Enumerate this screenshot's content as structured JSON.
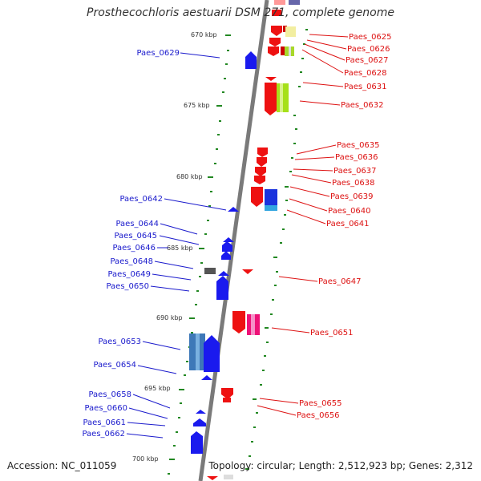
{
  "title": "Prosthecochloris aestuarii DSM 271, complete genome",
  "accession": "Accession: NC_011059",
  "summary": "Topology: circular; Length: 2,512,923 bp; Genes: 2,312",
  "colors": {
    "forward_label": "#1a1acc",
    "reverse_label": "#dd1111",
    "backbone": "#888888",
    "tick": "#228822"
  },
  "scale_labels": [
    "670 kbp",
    "675 kbp",
    "680 kbp",
    "685 kbp",
    "690 kbp",
    "695 kbp",
    "700 kbp"
  ],
  "forward_genes": [
    "Paes_0629",
    "Paes_0642",
    "Paes_0644",
    "Paes_0645",
    "Paes_0646",
    "Paes_0648",
    "Paes_0649",
    "Paes_0650",
    "Paes_0653",
    "Paes_0654",
    "Paes_0658",
    "Paes_0660",
    "Paes_0661",
    "Paes_0662"
  ],
  "reverse_genes": [
    "Paes_0625",
    "Paes_0626",
    "Paes_0627",
    "Paes_0628",
    "Paes_0631",
    "Paes_0632",
    "Paes_0635",
    "Paes_0636",
    "Paes_0637",
    "Paes_0638",
    "Paes_0639",
    "Paes_0640",
    "Paes_0641",
    "Paes_0647",
    "Paes_0651",
    "Paes_0655",
    "Paes_0656"
  ]
}
